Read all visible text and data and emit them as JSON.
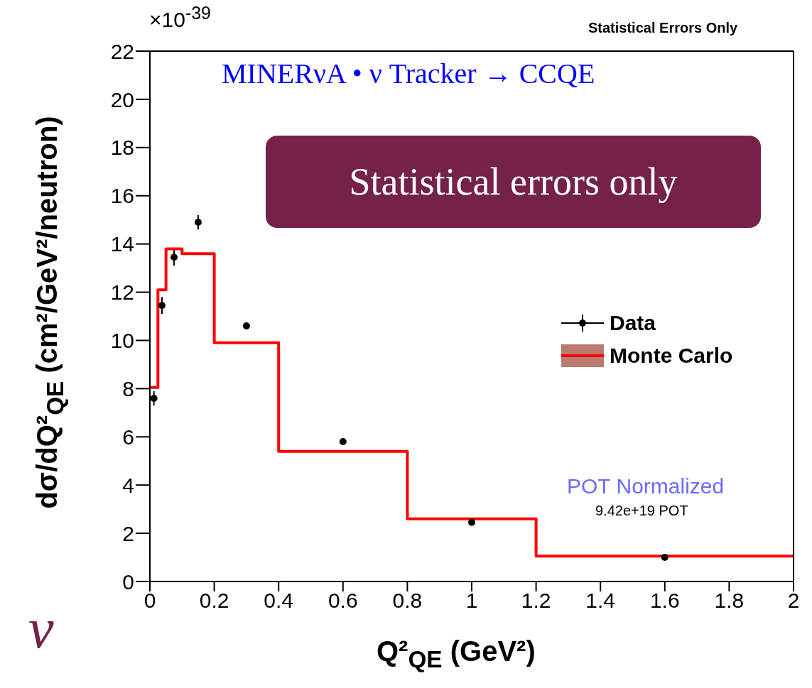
{
  "chart_data": {
    "type": "scatter",
    "title": "MINERνA • ν Tracker → CCQE",
    "xlabel": "Q²$_{QE}$ (GeV²)",
    "ylabel": "dσ/dQ²$_{QE}$ (cm²/GeV²/neutron)",
    "annotations": [
      "×10$^{-39}$",
      "Statistical Errors Only",
      "Statistical errors only",
      "POT Normalized",
      "9.42e+19 POT",
      "ν"
    ],
    "series": [
      {
        "name": "Data",
        "marker": "circle",
        "color": "#000000",
        "x": [
          0.0125,
          0.0375,
          0.075,
          0.15,
          0.3,
          0.6,
          1.0,
          1.6
        ],
        "values": [
          7.6,
          11.45,
          13.45,
          14.9,
          10.6,
          5.8,
          2.45,
          1.0
        ],
        "errors": [
          0.3,
          0.35,
          0.35,
          0.3,
          0.15,
          0.1,
          0.1,
          0.05
        ]
      },
      {
        "name": "Monte Carlo",
        "type": "step",
        "color": "#ff0000",
        "x": [
          0,
          0.025,
          0.05,
          0.1,
          0.2,
          0.4,
          0.8,
          1.2,
          2.0
        ],
        "values": [
          8.05,
          12.1,
          13.8,
          13.6,
          9.9,
          5.4,
          2.6,
          1.05,
          1.05
        ]
      }
    ],
    "xlim": [
      0,
      2
    ],
    "xticks": [
      0,
      0.2,
      0.4,
      0.6,
      0.8,
      1,
      1.2,
      1.4,
      1.6,
      1.8,
      2
    ],
    "ylim": [
      0,
      22
    ],
    "yticks": [
      0,
      2,
      4,
      6,
      8,
      10,
      12,
      14,
      16,
      18,
      20,
      22
    ],
    "grid": false,
    "legend": "right"
  }
}
